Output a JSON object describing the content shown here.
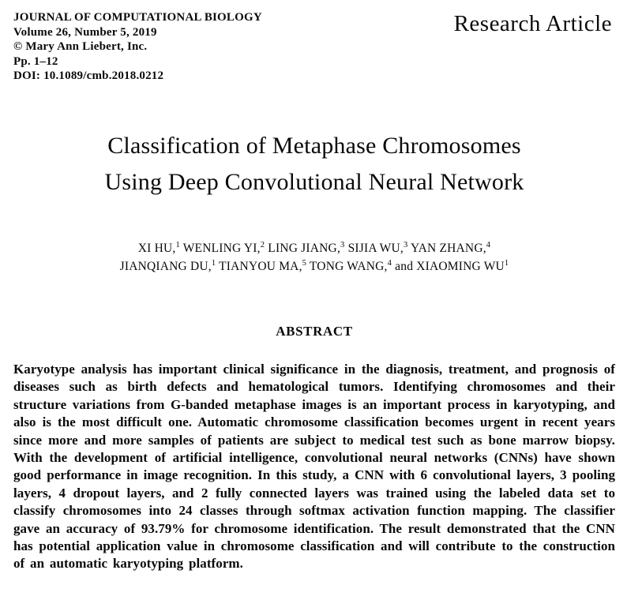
{
  "journal_header": {
    "line1": "JOURNAL OF COMPUTATIONAL BIOLOGY",
    "line2": "Volume 26, Number 5, 2019",
    "line3": "© Mary Ann Liebert, Inc.",
    "line4": "Pp. 1–12",
    "line5": "DOI: 10.1089/cmb.2018.0212"
  },
  "article_type": "Research Article",
  "title": {
    "line1": "Classification of Metaphase Chromosomes",
    "line2": "Using Deep Convolutional Neural Network"
  },
  "authors": {
    "line1": [
      {
        "text": "XI HU,",
        "sup": "1"
      },
      {
        "text": "WENLING YI,",
        "sup": "2"
      },
      {
        "text": "LING JIANG,",
        "sup": "3"
      },
      {
        "text": "SIJIA WU,",
        "sup": "3"
      },
      {
        "text": "YAN ZHANG,",
        "sup": "4"
      }
    ],
    "line2": [
      {
        "text": "JIANQIANG DU,",
        "sup": "1"
      },
      {
        "text": "TIANYOU MA,",
        "sup": "5"
      },
      {
        "text": "TONG WANG,",
        "sup": "4"
      },
      {
        "text": "and XIAOMING WU",
        "sup": "1"
      }
    ]
  },
  "abstract": {
    "heading": "ABSTRACT",
    "body": "Karyotype analysis has important clinical significance in the diagnosis, treatment, and prognosis of diseases such as birth defects and hematological tumors. Identifying chromosomes and their structure variations from G-banded metaphase images is an important process in karyotyping, and also is the most difficult one. Automatic chromosome classification becomes urgent in recent years since more and more samples of patients are subject to medical test such as bone marrow biopsy. With the development of artificial intelligence, convolutional neural networks (CNNs) have shown good performance in image recognition. In this study, a CNN with 6 convolutional layers, 3 pooling layers, 4 dropout layers, and 2 fully connected layers was trained using the labeled data set to classify chromosomes into 24 classes through softmax activation function mapping. The classifier gave an accuracy of 93.79% for chromosome identification. The result demonstrated that the CNN has potential application value in chromosome classification and will contribute to the construction of an automatic karyotyping platform."
  }
}
